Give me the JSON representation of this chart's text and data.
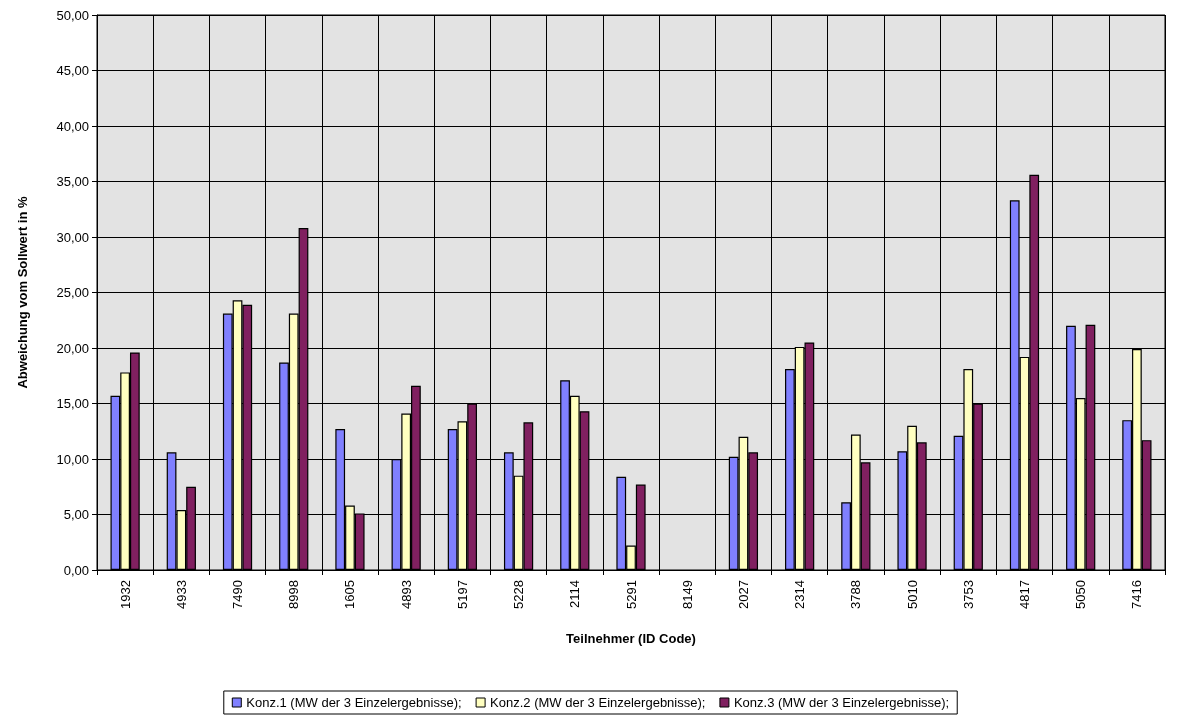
{
  "chart_data": {
    "type": "bar",
    "xlabel": "Teilnehmer (ID Code)",
    "ylabel": "Abweichung vom Sollwert in %",
    "categories": [
      "1932",
      "4933",
      "7490",
      "8998",
      "1605",
      "4893",
      "5197",
      "5228",
      "2114",
      "5291",
      "8149",
      "2027",
      "2314",
      "3788",
      "5010",
      "3753",
      "4817",
      "5050",
      "7416"
    ],
    "series": [
      {
        "name": "Konz.1 (MW der 3 Einzelergebnisse);",
        "color": "#8080ff",
        "values": [
          15.7,
          10.6,
          23.1,
          18.7,
          12.7,
          10.0,
          12.7,
          10.6,
          17.1,
          8.4,
          null,
          10.2,
          18.1,
          6.1,
          10.7,
          12.1,
          33.3,
          22.0,
          13.5
        ]
      },
      {
        "name": "Konz.2 (MW der 3 Einzelergebnisse);",
        "color": "#ffffc0",
        "values": [
          17.8,
          5.4,
          24.3,
          23.1,
          5.8,
          14.1,
          13.4,
          8.5,
          15.7,
          2.2,
          null,
          12.0,
          20.1,
          12.2,
          13.0,
          18.1,
          19.2,
          15.5,
          19.9
        ]
      },
      {
        "name": "Konz.3 (MW der 3 Einzelergebnisse);",
        "color": "#802060",
        "values": [
          19.6,
          7.5,
          23.9,
          30.8,
          5.1,
          16.6,
          15.0,
          13.3,
          14.3,
          7.7,
          null,
          10.6,
          20.5,
          9.7,
          11.5,
          15.0,
          35.6,
          22.1,
          11.7
        ]
      }
    ],
    "ylim": [
      0,
      50
    ],
    "yticks": [
      {
        "value": 0,
        "label": "0,00"
      },
      {
        "value": 5,
        "label": "5,00"
      },
      {
        "value": 10,
        "label": "10,00"
      },
      {
        "value": 15,
        "label": "15,00"
      },
      {
        "value": 20,
        "label": "20,00"
      },
      {
        "value": 25,
        "label": "25,00"
      },
      {
        "value": 30,
        "label": "30,00"
      },
      {
        "value": 35,
        "label": "35,00"
      },
      {
        "value": 40,
        "label": "40,00"
      },
      {
        "value": 45,
        "label": "45,00"
      },
      {
        "value": 50,
        "label": "50,00"
      }
    ],
    "grid": true,
    "legend": "bottom"
  }
}
